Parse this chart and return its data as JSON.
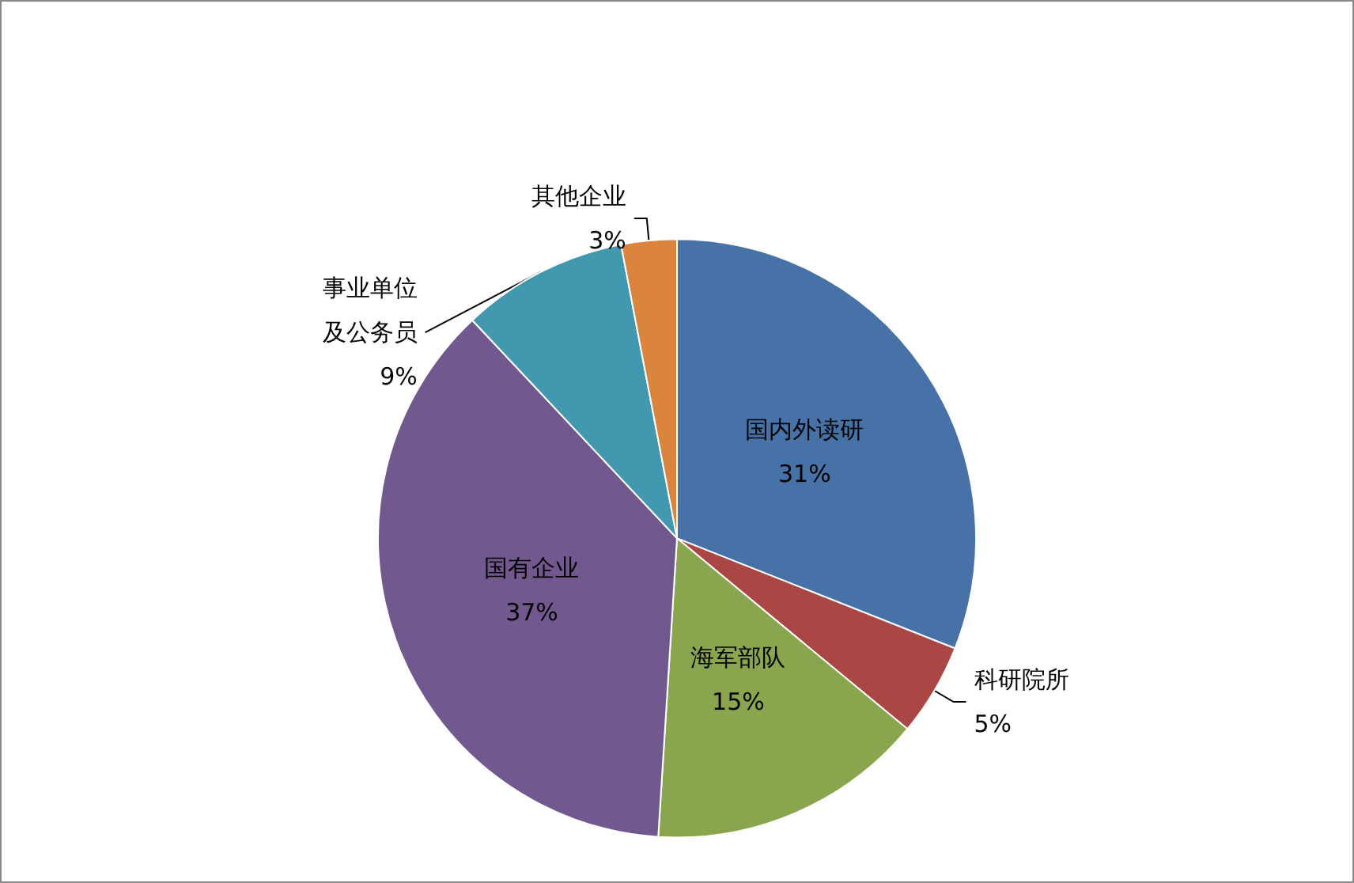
{
  "chart_data": {
    "type": "pie",
    "categories": [
      "国内外读研",
      "科研院所",
      "海军部队",
      "国有企业",
      "事业单位及公务员",
      "其他企业"
    ],
    "values": [
      31,
      5,
      15,
      37,
      9,
      3
    ],
    "colors": [
      "#4672a8",
      "#aa4644",
      "#89a54e",
      "#71588f",
      "#4198af",
      "#db843d"
    ],
    "value_labels": [
      "31%",
      "5%",
      "15%",
      "37%",
      "9%",
      "3%"
    ],
    "legend": false
  }
}
